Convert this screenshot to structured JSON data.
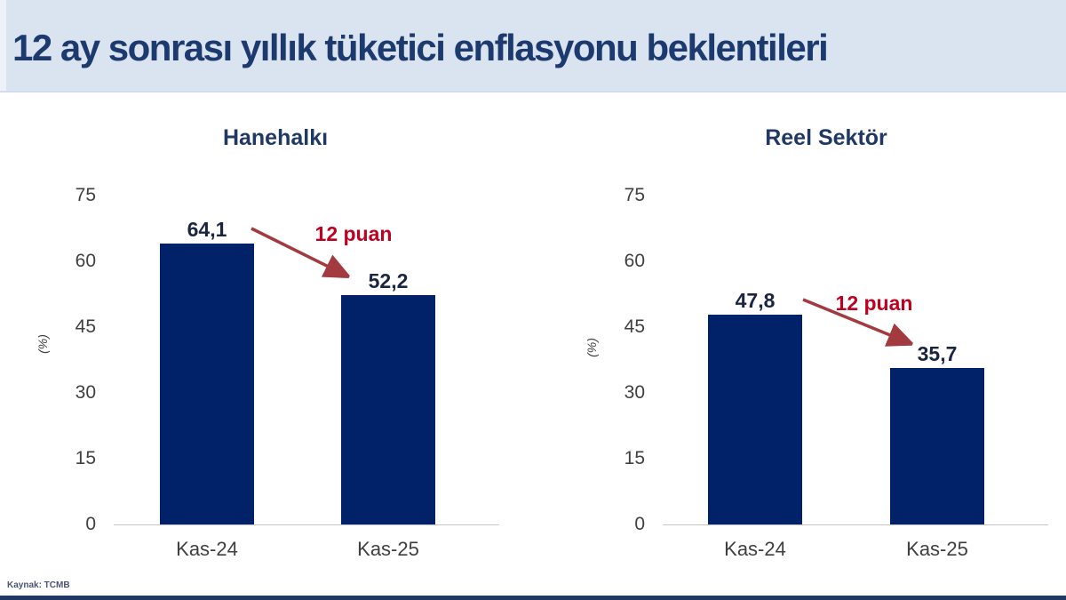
{
  "title": {
    "text": "12 ay sonrası yıllık tüketici enflasyonu beklentileri"
  },
  "source": {
    "label": "Kaynak: TCMB"
  },
  "colors": {
    "header_band": "#dae3f0",
    "title_text": "#1d3a6e",
    "bar": "#012169",
    "annotation_red": "#c00020",
    "arrow_red": "#a33a3f",
    "axis_line": "#c6c6c6",
    "tick_text": "#3f3f3f",
    "footer_strip": "#1f3864"
  },
  "chart_data": [
    {
      "type": "bar",
      "title": "Hanehalkı",
      "categories": [
        "Kas-24",
        "Kas-25"
      ],
      "values": [
        64.1,
        52.2
      ],
      "value_labels": [
        "64,1",
        "52,2"
      ],
      "annotation": "12 puan",
      "ylabel": "(%)",
      "yticks": [
        0,
        15,
        30,
        45,
        60,
        75
      ],
      "ytick_labels": [
        "75",
        "60",
        "45",
        "30",
        "15",
        "0"
      ],
      "ylim": [
        0,
        75
      ],
      "grid": false,
      "legend": false
    },
    {
      "type": "bar",
      "title": "Reel Sektör",
      "categories": [
        "Kas-24",
        "Kas-25"
      ],
      "values": [
        47.8,
        35.7
      ],
      "value_labels": [
        "47,8",
        "35,7"
      ],
      "annotation": "12 puan",
      "ylabel": "(%)",
      "yticks": [
        0,
        15,
        30,
        45,
        60,
        75
      ],
      "ytick_labels": [
        "75",
        "60",
        "45",
        "30",
        "15",
        "0"
      ],
      "ylim": [
        0,
        75
      ],
      "grid": false,
      "legend": false
    }
  ]
}
